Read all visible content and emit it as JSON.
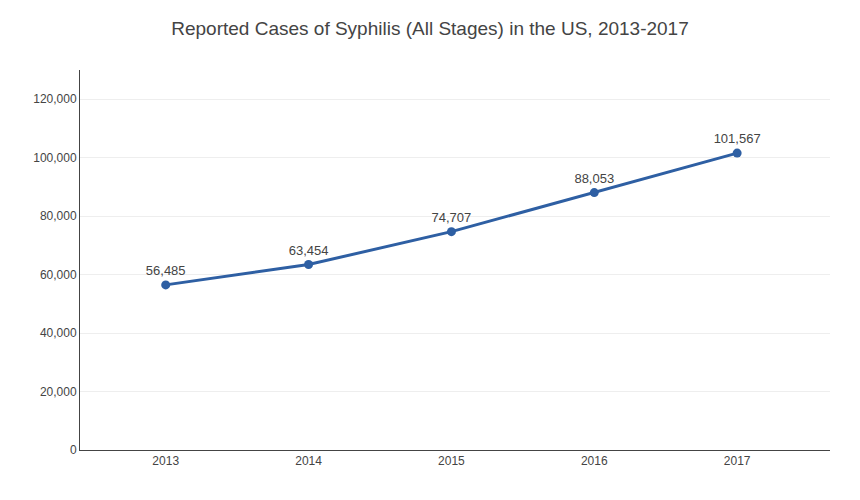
{
  "chart_data": {
    "type": "line",
    "title": "Reported Cases of Syphilis (All Stages) in the US, 2013-2017",
    "x": [
      2013,
      2014,
      2015,
      2016,
      2017
    ],
    "values": [
      56485,
      63454,
      74707,
      88053,
      101567
    ],
    "value_labels": [
      "56,485",
      "63,454",
      "74,707",
      "88,053",
      "101,567"
    ],
    "data_labels": true,
    "color": "#2E5FA3",
    "marker": "circle",
    "xlim": [
      2012.4,
      2017.65
    ],
    "xticks": [
      2013,
      2014,
      2015,
      2016,
      2017
    ],
    "ylim": [
      0,
      130000
    ],
    "yticks": [
      0,
      {
        "value": 20000,
        "label": "20,000"
      },
      {
        "value": 40000,
        "label": "40,000"
      },
      {
        "value": 60000,
        "label": "60,000"
      },
      {
        "value": 80000,
        "label": "80,000"
      },
      {
        "value": 100000,
        "label": "100,000"
      },
      {
        "value": 120000,
        "label": "120,000"
      }
    ],
    "grid": true
  }
}
